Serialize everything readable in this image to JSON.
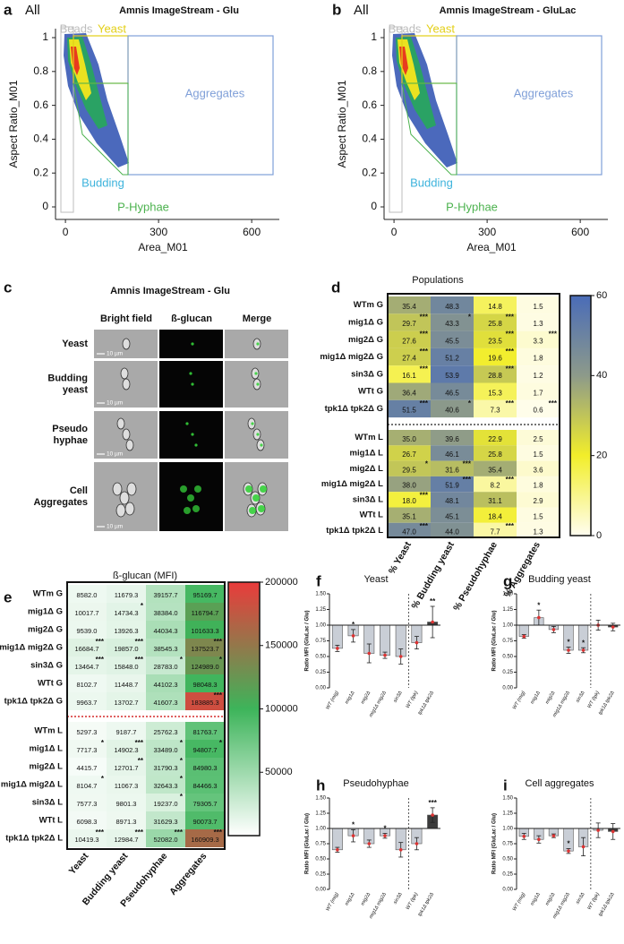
{
  "chart_data": [
    {
      "type": "scatter",
      "panel": "a",
      "gate_all": "All",
      "title": "Amnis ImageStream - Glu",
      "xlabel": "Area_M01",
      "ylabel": "Aspect Ratio_M01",
      "xlim": [
        -32,
        689
      ],
      "ylim": [
        -0.074,
        1.053
      ],
      "xticks": [
        0,
        300,
        600
      ],
      "yticks": [
        0,
        0.2,
        0.4,
        0.6,
        0.8,
        1
      ],
      "gates": [
        {
          "name": "Beads",
          "color": "#bdbdbd"
        },
        {
          "name": "Yeast",
          "color": "#e3cf16"
        },
        {
          "name": "Aggregates",
          "color": "#7f9fd8"
        },
        {
          "name": "Budding",
          "color": "#3db3dc"
        },
        {
          "name": "P-Hyphae",
          "color": "#4cb24e"
        }
      ]
    },
    {
      "type": "scatter",
      "panel": "b",
      "gate_all": "All",
      "title": "Amnis ImageStream - GluLac",
      "xlabel": "Area_M01",
      "ylabel": "Aspect Ratio_M01",
      "xlim": [
        -32,
        689
      ],
      "ylim": [
        -0.074,
        1.053
      ],
      "xticks": [
        0,
        300,
        600
      ],
      "yticks": [
        0,
        0.2,
        0.4,
        0.6,
        0.8,
        1
      ],
      "gates": [
        {
          "name": "Beads",
          "color": "#bdbdbd"
        },
        {
          "name": "Yeast",
          "color": "#e3cf16"
        },
        {
          "name": "Aggregates",
          "color": "#7f9fd8"
        },
        {
          "name": "Budding",
          "color": "#3db3dc"
        },
        {
          "name": "P-Hyphae",
          "color": "#4cb24e"
        }
      ]
    },
    {
      "type": "heatmap",
      "panel": "d",
      "title": "Populations",
      "columns": [
        "% Yeast",
        "% Budding yeast",
        "% Pseudohyphae",
        "% Aggregates"
      ],
      "clim": [
        0,
        60
      ],
      "cticks": [
        0,
        20,
        40,
        60
      ],
      "colormap": [
        "#fffdf0",
        "#f2ee2a",
        "#8d9a8a",
        "#4a6cb8"
      ],
      "groups": [
        {
          "rows": [
            "WTm G",
            "mig1Δ G",
            "mig2Δ G",
            "mig1Δ mig2Δ G",
            "sin3Δ G",
            "WTt G",
            "tpk1Δ tpk2Δ G"
          ],
          "values": [
            [
              35.4,
              48.3,
              14.8,
              1.5
            ],
            [
              29.7,
              43.3,
              25.8,
              1.3
            ],
            [
              27.6,
              45.5,
              23.5,
              3.3
            ],
            [
              27.4,
              51.2,
              19.6,
              1.8
            ],
            [
              16.1,
              53.9,
              28.8,
              1.2
            ],
            [
              36.4,
              46.5,
              15.3,
              1.7
            ],
            [
              51.5,
              40.6,
              7.3,
              0.6
            ]
          ],
          "value_labels": [
            [
              "35.4",
              "48.3",
              "14.8",
              "1.5"
            ],
            [
              "29.7",
              "43.3",
              "25.8",
              "1.3"
            ],
            [
              "27.6",
              "45.5",
              "23.5",
              "3.3"
            ],
            [
              "27.4",
              "51.2",
              "19.6",
              "1.8"
            ],
            [
              "16.1",
              "53.9",
              "28.8",
              "1.2"
            ],
            [
              "36.4",
              "46.5",
              "15.3",
              "1.7"
            ],
            [
              "51.5",
              "40.6",
              "7.3",
              "0.6"
            ]
          ],
          "significance": [
            [
              null,
              null,
              null,
              null
            ],
            [
              "***",
              "*",
              "***",
              null
            ],
            [
              "***",
              null,
              "***",
              "***"
            ],
            [
              "***",
              null,
              "***",
              null
            ],
            [
              "***",
              null,
              "***",
              null
            ],
            [
              null,
              null,
              null,
              null
            ],
            [
              "***",
              "*",
              "***",
              "***"
            ]
          ]
        },
        {
          "rows": [
            "WTm L",
            "mig1Δ L",
            "mig2Δ L",
            "mig1Δ mig2Δ L",
            "sin3Δ L",
            "WTt L",
            "tpk1Δ tpk2Δ L"
          ],
          "values": [
            [
              35.0,
              39.6,
              22.9,
              2.5
            ],
            [
              26.7,
              46.1,
              25.8,
              1.5
            ],
            [
              29.5,
              31.6,
              35.4,
              3.6
            ],
            [
              38.0,
              51.9,
              8.2,
              1.8
            ],
            [
              18.0,
              48.1,
              31.1,
              2.9
            ],
            [
              35.1,
              45.1,
              18.4,
              1.5
            ],
            [
              47.0,
              44.0,
              7.7,
              1.3
            ]
          ],
          "value_labels": [
            [
              "35.0",
              "39.6",
              "22.9",
              "2.5"
            ],
            [
              "26.7",
              "46.1",
              "25.8",
              "1.5"
            ],
            [
              "29.5",
              "31.6",
              "35.4",
              "3.6"
            ],
            [
              "38.0",
              "51.9",
              "8.2",
              "1.8"
            ],
            [
              "18.0",
              "48.1",
              "31.1",
              "2.9"
            ],
            [
              "35.1",
              "45.1",
              "18.4",
              "1.5"
            ],
            [
              "47.0",
              "44.0",
              "7.7",
              "1.3"
            ]
          ],
          "significance": [
            [
              null,
              null,
              null,
              null
            ],
            [
              null,
              null,
              null,
              null
            ],
            [
              "*",
              "***",
              null,
              null
            ],
            [
              null,
              "***",
              "***",
              null
            ],
            [
              "***",
              null,
              null,
              null
            ],
            [
              null,
              null,
              null,
              null
            ],
            [
              "***",
              null,
              "***",
              null
            ]
          ]
        }
      ]
    },
    {
      "type": "heatmap",
      "panel": "e",
      "title": "ß-glucan (MFI)",
      "columns": [
        "Yeast",
        "Budding yeast",
        "Pseudohyphae",
        "Aggregates"
      ],
      "clim": [
        0,
        200000
      ],
      "cticks": [
        50000,
        100000,
        150000,
        200000
      ],
      "colormap": [
        "#ffffff",
        "#3db45a",
        "#ea3b3b"
      ],
      "groups": [
        {
          "rows": [
            "WTm G",
            "mig1Δ G",
            "mig2Δ G",
            "mig1Δ mig2Δ G",
            "sin3Δ G",
            "WTt G",
            "tpk1Δ tpk2Δ G"
          ],
          "values": [
            [
              8582.0,
              11679.3,
              39157.7,
              95169.7
            ],
            [
              10017.7,
              14734.3,
              38384.0,
              116794.7
            ],
            [
              9539.0,
              13926.3,
              44034.3,
              101633.3
            ],
            [
              16684.7,
              19857.0,
              38545.3,
              137523.7
            ],
            [
              13464.7,
              15848.0,
              28783.0,
              124989.0
            ],
            [
              8102.7,
              11448.7,
              44102.3,
              98048.3
            ],
            [
              9963.7,
              13702.7,
              41607.3,
              183885.3
            ]
          ],
          "value_labels": [
            [
              "8582.0",
              "11679.3",
              "39157.7",
              "95169.7"
            ],
            [
              "10017.7",
              "14734.3",
              "38384.0",
              "116794.7"
            ],
            [
              "9539.0",
              "13926.3",
              "44034.3",
              "101633.3"
            ],
            [
              "16684.7",
              "19857.0",
              "38545.3",
              "137523.7"
            ],
            [
              "13464.7",
              "15848.0",
              "28783.0",
              "124989.0"
            ],
            [
              "8102.7",
              "11448.7",
              "44102.3",
              "98048.3"
            ],
            [
              "9963.7",
              "13702.7",
              "41607.3",
              "183885.3"
            ]
          ],
          "significance": [
            [
              null,
              null,
              null,
              null
            ],
            [
              null,
              "*",
              null,
              null
            ],
            [
              null,
              null,
              null,
              null
            ],
            [
              "***",
              "***",
              null,
              "***"
            ],
            [
              "***",
              "***",
              "*",
              "*"
            ],
            [
              null,
              null,
              null,
              null
            ],
            [
              null,
              null,
              null,
              "***"
            ]
          ]
        },
        {
          "rows": [
            "WTm L",
            "mig1Δ L",
            "mig2Δ L",
            "mig1Δ mig2Δ L",
            "sin3Δ L",
            "WTt L",
            "tpk1Δ tpk2Δ L"
          ],
          "values": [
            [
              5297.3,
              9187.7,
              25762.3,
              81763.7
            ],
            [
              7717.3,
              14902.3,
              33489.0,
              94807.7
            ],
            [
              4415.7,
              12701.7,
              31790.3,
              84980.3
            ],
            [
              8104.7,
              11067.3,
              32643.3,
              84466.3
            ],
            [
              7577.3,
              9801.3,
              19237.0,
              79305.7
            ],
            [
              6098.3,
              8971.3,
              31629.3,
              90073.7
            ],
            [
              10419.3,
              12984.7,
              52082.0,
              160909.3
            ]
          ],
          "value_labels": [
            [
              "5297.3",
              "9187.7",
              "25762.3",
              "81763.7"
            ],
            [
              "7717.3",
              "14902.3",
              "33489.0",
              "94807.7"
            ],
            [
              "4415.7",
              "12701.7",
              "31790.3",
              "84980.3"
            ],
            [
              "8104.7",
              "11067.3",
              "32643.3",
              "84466.3"
            ],
            [
              "7577.3",
              "9801.3",
              "19237.0",
              "79305.7"
            ],
            [
              "6098.3",
              "8971.3",
              "31629.3",
              "90073.7"
            ],
            [
              "10419.3",
              "12984.7",
              "52082.0",
              "160909.3"
            ]
          ],
          "significance": [
            [
              null,
              null,
              null,
              null
            ],
            [
              "*",
              "***",
              "*",
              "*"
            ],
            [
              null,
              "**",
              "*",
              null
            ],
            [
              "*",
              null,
              "*",
              null
            ],
            [
              null,
              null,
              "*",
              null
            ],
            [
              null,
              null,
              null,
              null
            ],
            [
              "***",
              "***",
              "***",
              "***"
            ]
          ]
        }
      ]
    },
    {
      "type": "bar",
      "panel": "f",
      "title": "Yeast",
      "ylabel": "Ratio MFI (GluLac / Glu)",
      "baseline": 1,
      "categories": [
        "WT (mig)",
        "mig1Δ",
        "mig2Δ",
        "mig1Δ mig2Δ",
        "sin3Δ",
        "WT (tpk)",
        "tpk1Δ tpk2Δ"
      ],
      "values": [
        0.63,
        0.83,
        0.55,
        0.52,
        0.5,
        0.72,
        1.05
      ],
      "errors": [
        0.05,
        0.1,
        0.15,
        0.05,
        0.12,
        0.1,
        0.25
      ],
      "significance": [
        null,
        "*",
        null,
        null,
        null,
        null,
        "**"
      ],
      "colors": [
        "#c9ced6",
        "#c9ced6",
        "#c9ced6",
        "#c9ced6",
        "#c9ced6",
        "#c9ced6",
        "#3b3b3b"
      ],
      "ylim": [
        0,
        1.5
      ],
      "yticks": [
        {
          "value": 0,
          "label": "0.00"
        },
        {
          "value": 0.25,
          "label": "0.25"
        },
        {
          "value": 0.5,
          "label": "0.50"
        },
        {
          "value": 0.75,
          "label": "0.75"
        },
        {
          "value": 1,
          "label": "1.00"
        },
        {
          "value": 1.25,
          "label": "1.25"
        },
        {
          "value": 1.5,
          "label": "1.50"
        }
      ]
    },
    {
      "type": "bar",
      "panel": "g",
      "title": "Budding yeast",
      "ylabel": "Ratio MFI (GluLac / Glu)",
      "baseline": 1,
      "categories": [
        "WT (mig)",
        "mig1Δ",
        "mig2Δ",
        "mig1Δ mig2Δ",
        "sin3Δ",
        "WT (tpk)",
        "tpk1Δ tpk2Δ"
      ],
      "values": [
        0.82,
        1.12,
        0.93,
        0.6,
        0.6,
        1.0,
        0.97
      ],
      "errors": [
        0.03,
        0.12,
        0.05,
        0.05,
        0.04,
        0.08,
        0.06
      ],
      "significance": [
        null,
        "*",
        null,
        "*",
        "*",
        null,
        null
      ],
      "colors": [
        "#c9ced6",
        "#c9ced6",
        "#c9ced6",
        "#c9ced6",
        "#c9ced6",
        "#c9ced6",
        "#3b3b3b"
      ],
      "ylim": [
        0,
        1.5
      ],
      "yticks": [
        {
          "value": 0,
          "label": "0.00"
        },
        {
          "value": 0.25,
          "label": "0.25"
        },
        {
          "value": 0.5,
          "label": "0.50"
        },
        {
          "value": 0.75,
          "label": "0.75"
        },
        {
          "value": 1,
          "label": "1.00"
        },
        {
          "value": 1.25,
          "label": "1.25"
        },
        {
          "value": 1.5,
          "label": "1.50"
        }
      ]
    },
    {
      "type": "bar",
      "panel": "h",
      "title": "Pseudohyphae",
      "ylabel": "Ratio MFI (GluLac / Glu)",
      "baseline": 1,
      "categories": [
        "WT (mig)",
        "mig1Δ",
        "mig2Δ",
        "mig1Δ mig2Δ",
        "sin3Δ",
        "WT (tpk)",
        "tpk1Δ tpk2Δ"
      ],
      "values": [
        0.65,
        0.88,
        0.75,
        0.88,
        0.65,
        0.75,
        1.22
      ],
      "errors": [
        0.04,
        0.1,
        0.06,
        0.04,
        0.12,
        0.1,
        0.12
      ],
      "significance": [
        null,
        "*",
        null,
        "*",
        null,
        null,
        "***"
      ],
      "colors": [
        "#c9ced6",
        "#c9ced6",
        "#c9ced6",
        "#c9ced6",
        "#c9ced6",
        "#c9ced6",
        "#3b3b3b"
      ],
      "ylim": [
        0,
        1.5
      ],
      "yticks": [
        {
          "value": 0,
          "label": "0.00"
        },
        {
          "value": 0.25,
          "label": "0.25"
        },
        {
          "value": 0.5,
          "label": "0.50"
        },
        {
          "value": 0.75,
          "label": "0.75"
        },
        {
          "value": 1,
          "label": "1.00"
        },
        {
          "value": 1.25,
          "label": "1.25"
        },
        {
          "value": 1.5,
          "label": "1.50"
        }
      ]
    },
    {
      "type": "bar",
      "panel": "i",
      "title": "Cell aggregates",
      "ylabel": "Ratio MFI (GluLac / Glu)",
      "baseline": 1,
      "categories": [
        "WT (mig)",
        "mig1Δ",
        "mig2Δ",
        "mig1Δ mig2Δ",
        "sin3Δ",
        "WT (tpk)",
        "tpk1Δ tpk2Δ"
      ],
      "values": [
        0.87,
        0.82,
        0.88,
        0.63,
        0.7,
        0.97,
        0.95
      ],
      "errors": [
        0.05,
        0.06,
        0.03,
        0.04,
        0.15,
        0.12,
        0.13
      ],
      "significance": [
        null,
        null,
        null,
        "*",
        null,
        null,
        null
      ],
      "colors": [
        "#c9ced6",
        "#c9ced6",
        "#c9ced6",
        "#c9ced6",
        "#c9ced6",
        "#c9ced6",
        "#3b3b3b"
      ],
      "ylim": [
        0,
        1.5
      ],
      "yticks": [
        {
          "value": 0,
          "label": "0.00"
        },
        {
          "value": 0.25,
          "label": "0.25"
        },
        {
          "value": 0.5,
          "label": "0.50"
        },
        {
          "value": 0.75,
          "label": "0.75"
        },
        {
          "value": 1,
          "label": "1.00"
        },
        {
          "value": 1.25,
          "label": "1.25"
        },
        {
          "value": 1.5,
          "label": "1.50"
        }
      ]
    }
  ],
  "panel_c": {
    "panel": "c",
    "title": "Amnis ImageStream - Glu",
    "columns": [
      "Bright field",
      "ß-glucan",
      "Merge"
    ],
    "rows": [
      [
        "Yeast"
      ],
      [
        "Budding",
        "yeast"
      ],
      [
        "Pseudo",
        "hyphae"
      ],
      [
        "Cell",
        "Aggregates"
      ]
    ],
    "scale_bar": "10 µm"
  }
}
